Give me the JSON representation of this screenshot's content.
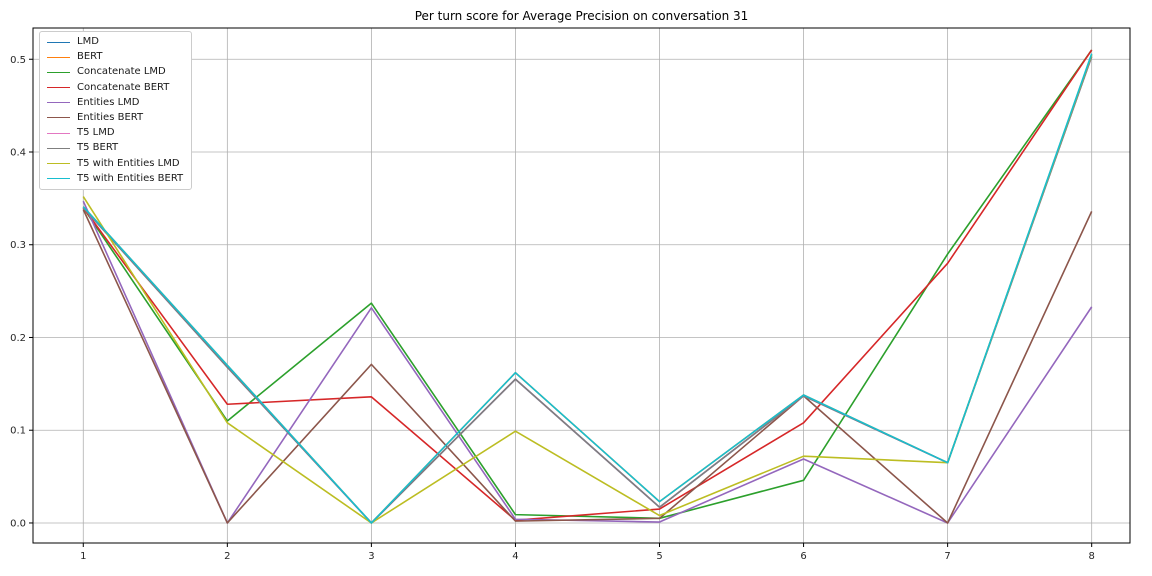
{
  "chart_data": {
    "type": "line",
    "title": "Per turn score for Average Precision on conversation 31",
    "xlabel": "",
    "ylabel": "",
    "grid": true,
    "legend_position": "upper left",
    "x": [
      1,
      2,
      3,
      4,
      5,
      6,
      7,
      8
    ],
    "x_tick_labels": [
      "1",
      "2",
      "3",
      "4",
      "5",
      "6",
      "7",
      "8"
    ],
    "y_ticks": [
      0.0,
      0.1,
      0.2,
      0.3,
      0.4,
      0.5
    ],
    "y_tick_labels": [
      "0.0",
      "0.1",
      "0.2",
      "0.3",
      "0.4",
      "0.5"
    ],
    "xlim": [
      0.651,
      8.266
    ],
    "ylim": [
      -0.0216,
      0.5337
    ],
    "series": [
      {
        "name": "LMD",
        "color": "#1f77b4",
        "values": [
          0.34,
          0.168,
          0.0,
          0.155,
          0.017,
          0.137,
          0.065,
          0.503
        ]
      },
      {
        "name": "BERT",
        "color": "#ff7f0e",
        "values": [
          0.341,
          0.17,
          0.0,
          0.162,
          0.023,
          0.138,
          0.065,
          0.505
        ]
      },
      {
        "name": "Concatenate LMD",
        "color": "#2ca02c",
        "values": [
          0.34,
          0.11,
          0.237,
          0.009,
          0.005,
          0.046,
          0.29,
          0.51
        ]
      },
      {
        "name": "Concatenate BERT",
        "color": "#d62728",
        "values": [
          0.34,
          0.128,
          0.136,
          0.003,
          0.015,
          0.108,
          0.28,
          0.51
        ]
      },
      {
        "name": "Entities LMD",
        "color": "#9467bd",
        "values": [
          0.347,
          0.0,
          0.232,
          0.004,
          0.001,
          0.069,
          0.0,
          0.233
        ]
      },
      {
        "name": "Entities BERT",
        "color": "#8c564b",
        "values": [
          0.338,
          0.0,
          0.171,
          0.002,
          0.005,
          0.137,
          0.0,
          0.336
        ]
      },
      {
        "name": "T5 LMD",
        "color": "#e377c2",
        "values": [
          0.34,
          0.168,
          0.0,
          0.155,
          0.017,
          0.137,
          0.065,
          0.503
        ]
      },
      {
        "name": "T5 BERT",
        "color": "#7f7f7f",
        "values": [
          0.34,
          0.168,
          0.0,
          0.155,
          0.017,
          0.137,
          0.065,
          0.503
        ]
      },
      {
        "name": "T5 with Entities LMD",
        "color": "#bcbd22",
        "values": [
          0.352,
          0.108,
          0.0,
          0.099,
          0.008,
          0.072,
          0.065,
          0.505
        ]
      },
      {
        "name": "T5 with Entities BERT",
        "color": "#17becf",
        "values": [
          0.341,
          0.17,
          0.0,
          0.162,
          0.023,
          0.138,
          0.065,
          0.506
        ]
      }
    ]
  }
}
